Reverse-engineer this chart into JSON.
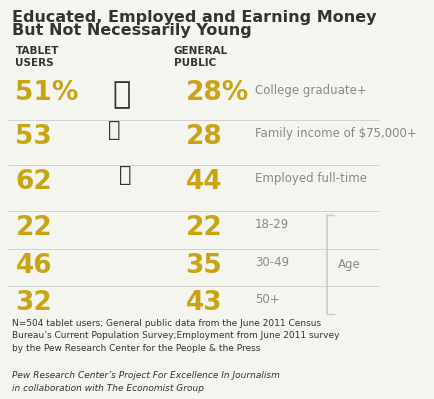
{
  "title_line1": "Educated, Employed and Earning Money",
  "title_line2": "But Not Necessarily Young",
  "col1_header": "TABLET\nUSERS",
  "col2_header": "GENERAL\nPUBLIC",
  "rows": [
    {
      "tablet": "51%",
      "general": "28%",
      "label": "College graduate+",
      "age": false
    },
    {
      "tablet": "53",
      "general": "28",
      "label": "Family income of $75,000+",
      "age": false
    },
    {
      "tablet": "62",
      "general": "44",
      "label": "Employed full-time",
      "age": false
    },
    {
      "tablet": "22",
      "general": "22",
      "label": "18-29",
      "age": true
    },
    {
      "tablet": "46",
      "general": "35",
      "label": "30-49",
      "age": true
    },
    {
      "tablet": "32",
      "general": "43",
      "label": "50+",
      "age": true
    }
  ],
  "gold_color": "#C8A415",
  "dark_color": "#333333",
  "gray_color": "#888888",
  "light_gray": "#cccccc",
  "footnote": "N=504 tablet users; General public data from the June 2011 Census\nBureau’s Current Population Survey;Employment from June 2011 survey\nby the Pew Research Center for the People & the Press",
  "source": "Pew Research Center’s Project For Excellence In Journalism\nin collaboration with The Economist Group",
  "bg_color": "#f5f5f0"
}
